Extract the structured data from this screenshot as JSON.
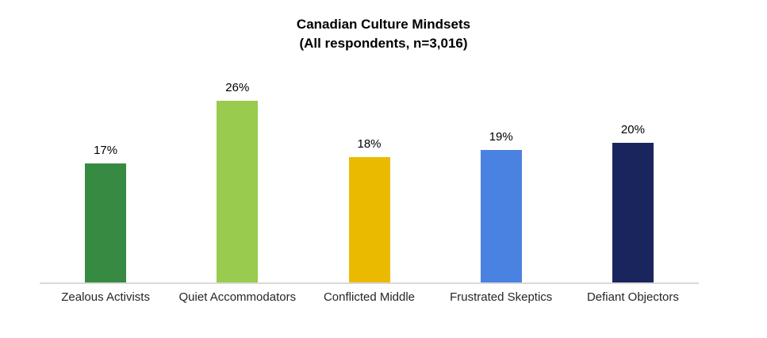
{
  "chart_data": {
    "type": "bar",
    "title": "Canadian Culture Mindsets",
    "subtitle": "(All respondents, n=3,016)",
    "categories": [
      "Zealous Activists",
      "Quiet Accommodators",
      "Conflicted Middle",
      "Frustrated Skeptics",
      "Defiant Objectors"
    ],
    "values": [
      17,
      26,
      18,
      19,
      20
    ],
    "value_labels": [
      "17%",
      "26%",
      "18%",
      "19%",
      "20%"
    ],
    "bar_colors": [
      "#368a41",
      "#98cb4e",
      "#eaba00",
      "#4a82e2",
      "#1a255e"
    ],
    "xlabel": "",
    "ylabel": "",
    "ylim": [
      0,
      30
    ],
    "grid": false,
    "legend": false,
    "axis_line_color": "#d9d9d9",
    "text_color": "#000000",
    "category_label_color": "#262626",
    "background_color": "#ffffff"
  }
}
